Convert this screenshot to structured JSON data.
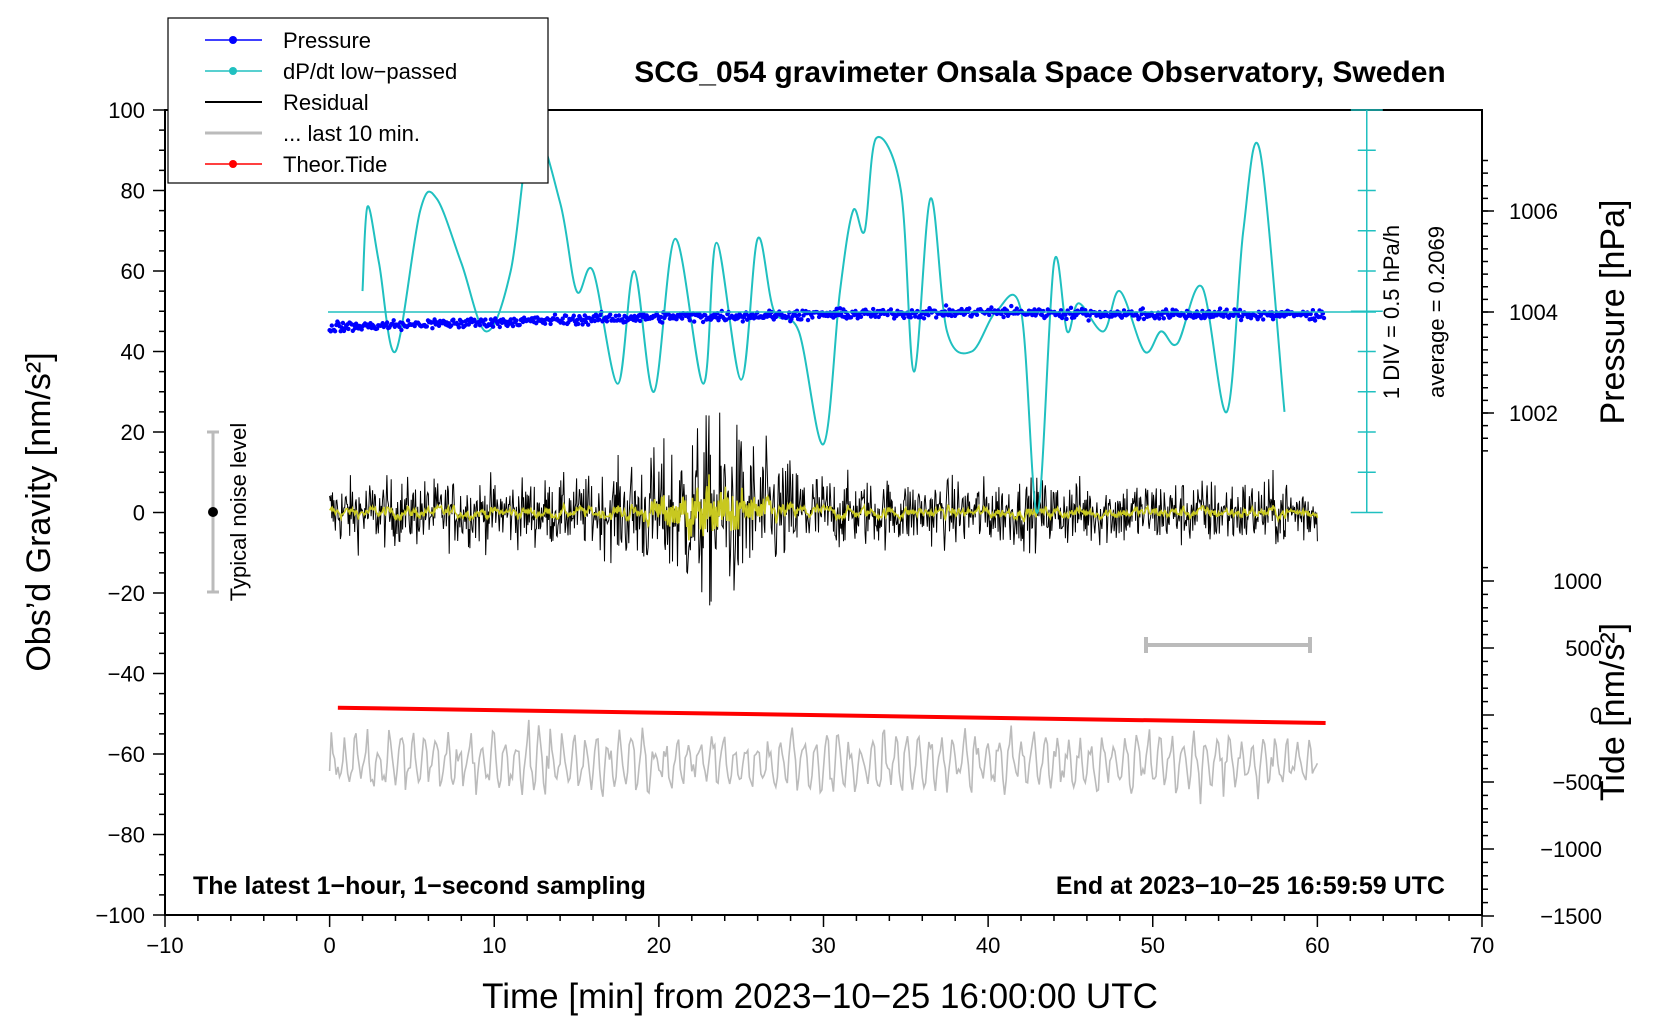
{
  "chart_data": {
    "type": "line",
    "title": "SCG_054 gravimeter Onsala Space Observatory, Sweden",
    "xlabel": "Time [min] from 2023−10−25 16:00:00 UTC",
    "ylabel_left": "Obs’d Gravity [nm/s²]",
    "ylabel_pressure": "Pressure [hPa]",
    "ylabel_tide": "Tide [nm/s²]",
    "xlim": [
      -10,
      70
    ],
    "ylim_left": [
      -100,
      100
    ],
    "x_ticks": [
      "−10",
      "0",
      "10",
      "20",
      "30",
      "40",
      "50",
      "60",
      "70"
    ],
    "y_ticks_left": [
      "100",
      "80",
      "60",
      "40",
      "20",
      "0",
      "−20",
      "−40",
      "−60",
      "−80",
      "−100"
    ],
    "pressure_ticks": [
      "1006",
      "1004",
      "1002"
    ],
    "tide_ticks": [
      "1000",
      "500",
      "0",
      "−500",
      "−1000",
      "−1500"
    ],
    "legend": [
      "Pressure",
      "dP/dt low−passed",
      "Residual",
      "... last 10 min.",
      "Theor.Tide"
    ],
    "annotations": {
      "noise": "Typical noise level",
      "div": "1 DIV = 0.5 hPa/h",
      "average": "average = 0.2069",
      "bottom_left": "The latest 1−hour, 1−second sampling",
      "bottom_right": "End at 2023−10−25 16:59:59 UTC"
    },
    "colors": {
      "pressure": "#0000ff",
      "dpdt": "#20c0c0",
      "residual": "#000000",
      "residual_filtered": "#c8c820",
      "last10": "#bbbbbb",
      "tide": "#ff0000"
    },
    "series": [
      {
        "name": "Pressure",
        "unit": "hPa",
        "x": [
          0,
          10,
          20,
          30,
          40,
          50,
          60
        ],
        "values": [
          1003.7,
          1003.8,
          1003.9,
          1003.95,
          1004.0,
          1003.95,
          1003.95
        ]
      },
      {
        "name": "dP/dt low-passed",
        "unit": "nm/s2 axis",
        "x": [
          2,
          2.3,
          3,
          4,
          5.5,
          6.5,
          8,
          9.5,
          11,
          12.3,
          14,
          15,
          16,
          17.5,
          18.5,
          19.7,
          21,
          22.7,
          23.5,
          25,
          26,
          27,
          28.5,
          30,
          31,
          31.8,
          32.5,
          33.2,
          34.7,
          35.5,
          36.5,
          37.5,
          39,
          40.5,
          42,
          43,
          44,
          44.8,
          45.5,
          47,
          48,
          49.5,
          50.5,
          51.5,
          53,
          54.5,
          55.5,
          56.5,
          58
        ],
        "values": [
          55,
          76,
          62,
          40,
          75,
          78,
          62,
          45,
          60,
          95,
          77,
          55,
          60,
          32,
          60,
          30,
          68,
          32,
          67,
          33,
          68,
          50,
          45,
          17,
          55,
          75,
          70,
          93,
          80,
          35,
          78,
          45,
          40,
          50,
          50,
          0,
          62,
          45,
          52,
          45,
          55,
          40,
          45,
          42,
          56,
          25,
          70,
          90,
          25
        ]
      },
      {
        "name": "Residual",
        "unit": "nm/s2",
        "x": [
          0,
          5,
          10,
          15,
          20,
          23,
          25,
          30,
          40,
          50,
          60
        ],
        "values": [
          0,
          0,
          0,
          0,
          0,
          0,
          0,
          0,
          0,
          0,
          0
        ]
      },
      {
        "name": "... last 10 min.",
        "unit": "nm/s2",
        "x": [
          0,
          60
        ],
        "values": [
          -62,
          -62
        ]
      },
      {
        "name": "Theor.Tide",
        "unit": "nm/s2",
        "x": [
          0,
          60
        ],
        "values": [
          50,
          -70
        ]
      }
    ],
    "error_bars": [
      {
        "name": "Typical noise level",
        "x": -7,
        "y": 0,
        "low": -20,
        "high": 20
      },
      {
        "name": "last 10 min.",
        "x_range": [
          50,
          60
        ],
        "y": -33
      }
    ]
  }
}
